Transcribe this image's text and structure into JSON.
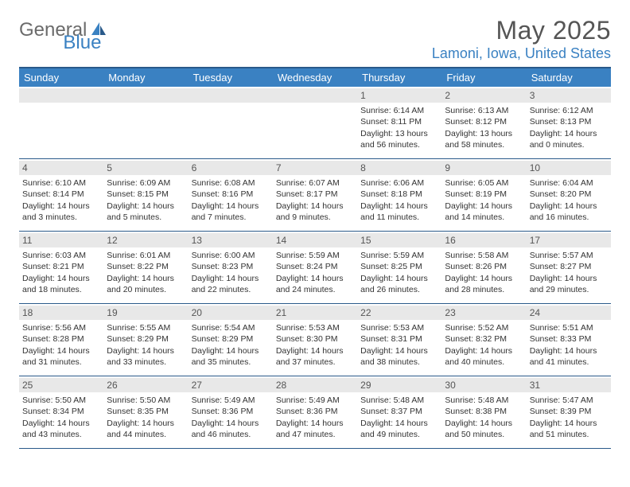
{
  "logo": {
    "general": "General",
    "blue": "Blue"
  },
  "title": "May 2025",
  "location": "Lamoni, Iowa, United States",
  "colors": {
    "brand_blue": "#3a81c2",
    "dark_blue": "#2a5a8a",
    "gray_text": "#6b6b6b",
    "daynum_bg": "#e8e8e8"
  },
  "weekdays": [
    "Sunday",
    "Monday",
    "Tuesday",
    "Wednesday",
    "Thursday",
    "Friday",
    "Saturday"
  ],
  "weeks": [
    [
      null,
      null,
      null,
      null,
      {
        "n": "1",
        "sr": "6:14 AM",
        "ss": "8:11 PM",
        "dl1": "Daylight: 13 hours",
        "dl2": "and 56 minutes."
      },
      {
        "n": "2",
        "sr": "6:13 AM",
        "ss": "8:12 PM",
        "dl1": "Daylight: 13 hours",
        "dl2": "and 58 minutes."
      },
      {
        "n": "3",
        "sr": "6:12 AM",
        "ss": "8:13 PM",
        "dl1": "Daylight: 14 hours",
        "dl2": "and 0 minutes."
      }
    ],
    [
      {
        "n": "4",
        "sr": "6:10 AM",
        "ss": "8:14 PM",
        "dl1": "Daylight: 14 hours",
        "dl2": "and 3 minutes."
      },
      {
        "n": "5",
        "sr": "6:09 AM",
        "ss": "8:15 PM",
        "dl1": "Daylight: 14 hours",
        "dl2": "and 5 minutes."
      },
      {
        "n": "6",
        "sr": "6:08 AM",
        "ss": "8:16 PM",
        "dl1": "Daylight: 14 hours",
        "dl2": "and 7 minutes."
      },
      {
        "n": "7",
        "sr": "6:07 AM",
        "ss": "8:17 PM",
        "dl1": "Daylight: 14 hours",
        "dl2": "and 9 minutes."
      },
      {
        "n": "8",
        "sr": "6:06 AM",
        "ss": "8:18 PM",
        "dl1": "Daylight: 14 hours",
        "dl2": "and 11 minutes."
      },
      {
        "n": "9",
        "sr": "6:05 AM",
        "ss": "8:19 PM",
        "dl1": "Daylight: 14 hours",
        "dl2": "and 14 minutes."
      },
      {
        "n": "10",
        "sr": "6:04 AM",
        "ss": "8:20 PM",
        "dl1": "Daylight: 14 hours",
        "dl2": "and 16 minutes."
      }
    ],
    [
      {
        "n": "11",
        "sr": "6:03 AM",
        "ss": "8:21 PM",
        "dl1": "Daylight: 14 hours",
        "dl2": "and 18 minutes."
      },
      {
        "n": "12",
        "sr": "6:01 AM",
        "ss": "8:22 PM",
        "dl1": "Daylight: 14 hours",
        "dl2": "and 20 minutes."
      },
      {
        "n": "13",
        "sr": "6:00 AM",
        "ss": "8:23 PM",
        "dl1": "Daylight: 14 hours",
        "dl2": "and 22 minutes."
      },
      {
        "n": "14",
        "sr": "5:59 AM",
        "ss": "8:24 PM",
        "dl1": "Daylight: 14 hours",
        "dl2": "and 24 minutes."
      },
      {
        "n": "15",
        "sr": "5:59 AM",
        "ss": "8:25 PM",
        "dl1": "Daylight: 14 hours",
        "dl2": "and 26 minutes."
      },
      {
        "n": "16",
        "sr": "5:58 AM",
        "ss": "8:26 PM",
        "dl1": "Daylight: 14 hours",
        "dl2": "and 28 minutes."
      },
      {
        "n": "17",
        "sr": "5:57 AM",
        "ss": "8:27 PM",
        "dl1": "Daylight: 14 hours",
        "dl2": "and 29 minutes."
      }
    ],
    [
      {
        "n": "18",
        "sr": "5:56 AM",
        "ss": "8:28 PM",
        "dl1": "Daylight: 14 hours",
        "dl2": "and 31 minutes."
      },
      {
        "n": "19",
        "sr": "5:55 AM",
        "ss": "8:29 PM",
        "dl1": "Daylight: 14 hours",
        "dl2": "and 33 minutes."
      },
      {
        "n": "20",
        "sr": "5:54 AM",
        "ss": "8:29 PM",
        "dl1": "Daylight: 14 hours",
        "dl2": "and 35 minutes."
      },
      {
        "n": "21",
        "sr": "5:53 AM",
        "ss": "8:30 PM",
        "dl1": "Daylight: 14 hours",
        "dl2": "and 37 minutes."
      },
      {
        "n": "22",
        "sr": "5:53 AM",
        "ss": "8:31 PM",
        "dl1": "Daylight: 14 hours",
        "dl2": "and 38 minutes."
      },
      {
        "n": "23",
        "sr": "5:52 AM",
        "ss": "8:32 PM",
        "dl1": "Daylight: 14 hours",
        "dl2": "and 40 minutes."
      },
      {
        "n": "24",
        "sr": "5:51 AM",
        "ss": "8:33 PM",
        "dl1": "Daylight: 14 hours",
        "dl2": "and 41 minutes."
      }
    ],
    [
      {
        "n": "25",
        "sr": "5:50 AM",
        "ss": "8:34 PM",
        "dl1": "Daylight: 14 hours",
        "dl2": "and 43 minutes."
      },
      {
        "n": "26",
        "sr": "5:50 AM",
        "ss": "8:35 PM",
        "dl1": "Daylight: 14 hours",
        "dl2": "and 44 minutes."
      },
      {
        "n": "27",
        "sr": "5:49 AM",
        "ss": "8:36 PM",
        "dl1": "Daylight: 14 hours",
        "dl2": "and 46 minutes."
      },
      {
        "n": "28",
        "sr": "5:49 AM",
        "ss": "8:36 PM",
        "dl1": "Daylight: 14 hours",
        "dl2": "and 47 minutes."
      },
      {
        "n": "29",
        "sr": "5:48 AM",
        "ss": "8:37 PM",
        "dl1": "Daylight: 14 hours",
        "dl2": "and 49 minutes."
      },
      {
        "n": "30",
        "sr": "5:48 AM",
        "ss": "8:38 PM",
        "dl1": "Daylight: 14 hours",
        "dl2": "and 50 minutes."
      },
      {
        "n": "31",
        "sr": "5:47 AM",
        "ss": "8:39 PM",
        "dl1": "Daylight: 14 hours",
        "dl2": "and 51 minutes."
      }
    ]
  ],
  "labels": {
    "sunrise_prefix": "Sunrise: ",
    "sunset_prefix": "Sunset: "
  }
}
